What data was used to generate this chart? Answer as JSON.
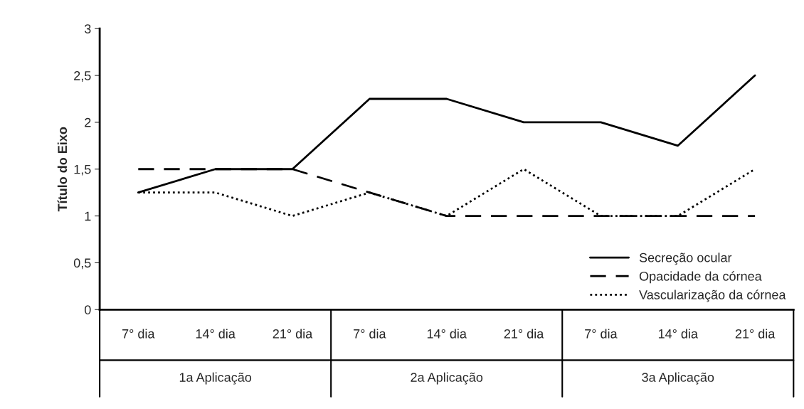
{
  "chart_data": {
    "type": "line",
    "ylabel": "Título do Eixo",
    "categories": [
      "7° dia",
      "14° dia",
      "21° dia",
      "7° dia",
      "14° dia",
      "21° dia",
      "7° dia",
      "14° dia",
      "21° dia"
    ],
    "annotations": [
      "1a Aplicação",
      "2a Aplicação",
      "3a Aplicação"
    ],
    "series": [
      {
        "name": "Secreção ocular",
        "color": "#000000",
        "line_style": "solid",
        "values": [
          1.25,
          1.5,
          1.5,
          2.25,
          2.25,
          2,
          2,
          1.75,
          2.5
        ]
      },
      {
        "name": "Opacidade da córnea",
        "color": "#000000",
        "line_style": "dashed",
        "values": [
          1.5,
          1.5,
          1.5,
          1.25,
          1,
          1,
          1,
          1,
          1
        ]
      },
      {
        "name": "Vascularização da córnea",
        "color": "#000000",
        "line_style": "dotted",
        "values": [
          1.25,
          1.25,
          1,
          1.25,
          1,
          1.5,
          1,
          1,
          1.5
        ]
      }
    ],
    "ylim": [
      0,
      3
    ],
    "yticks": [
      0,
      {
        "value": 0.5,
        "label": "0,5"
      },
      1,
      {
        "value": 1.5,
        "label": "1,5"
      },
      2,
      {
        "value": 2.5,
        "label": "2,5"
      },
      3
    ],
    "grid": false,
    "legend": "bottom right",
    "marker": "none"
  }
}
